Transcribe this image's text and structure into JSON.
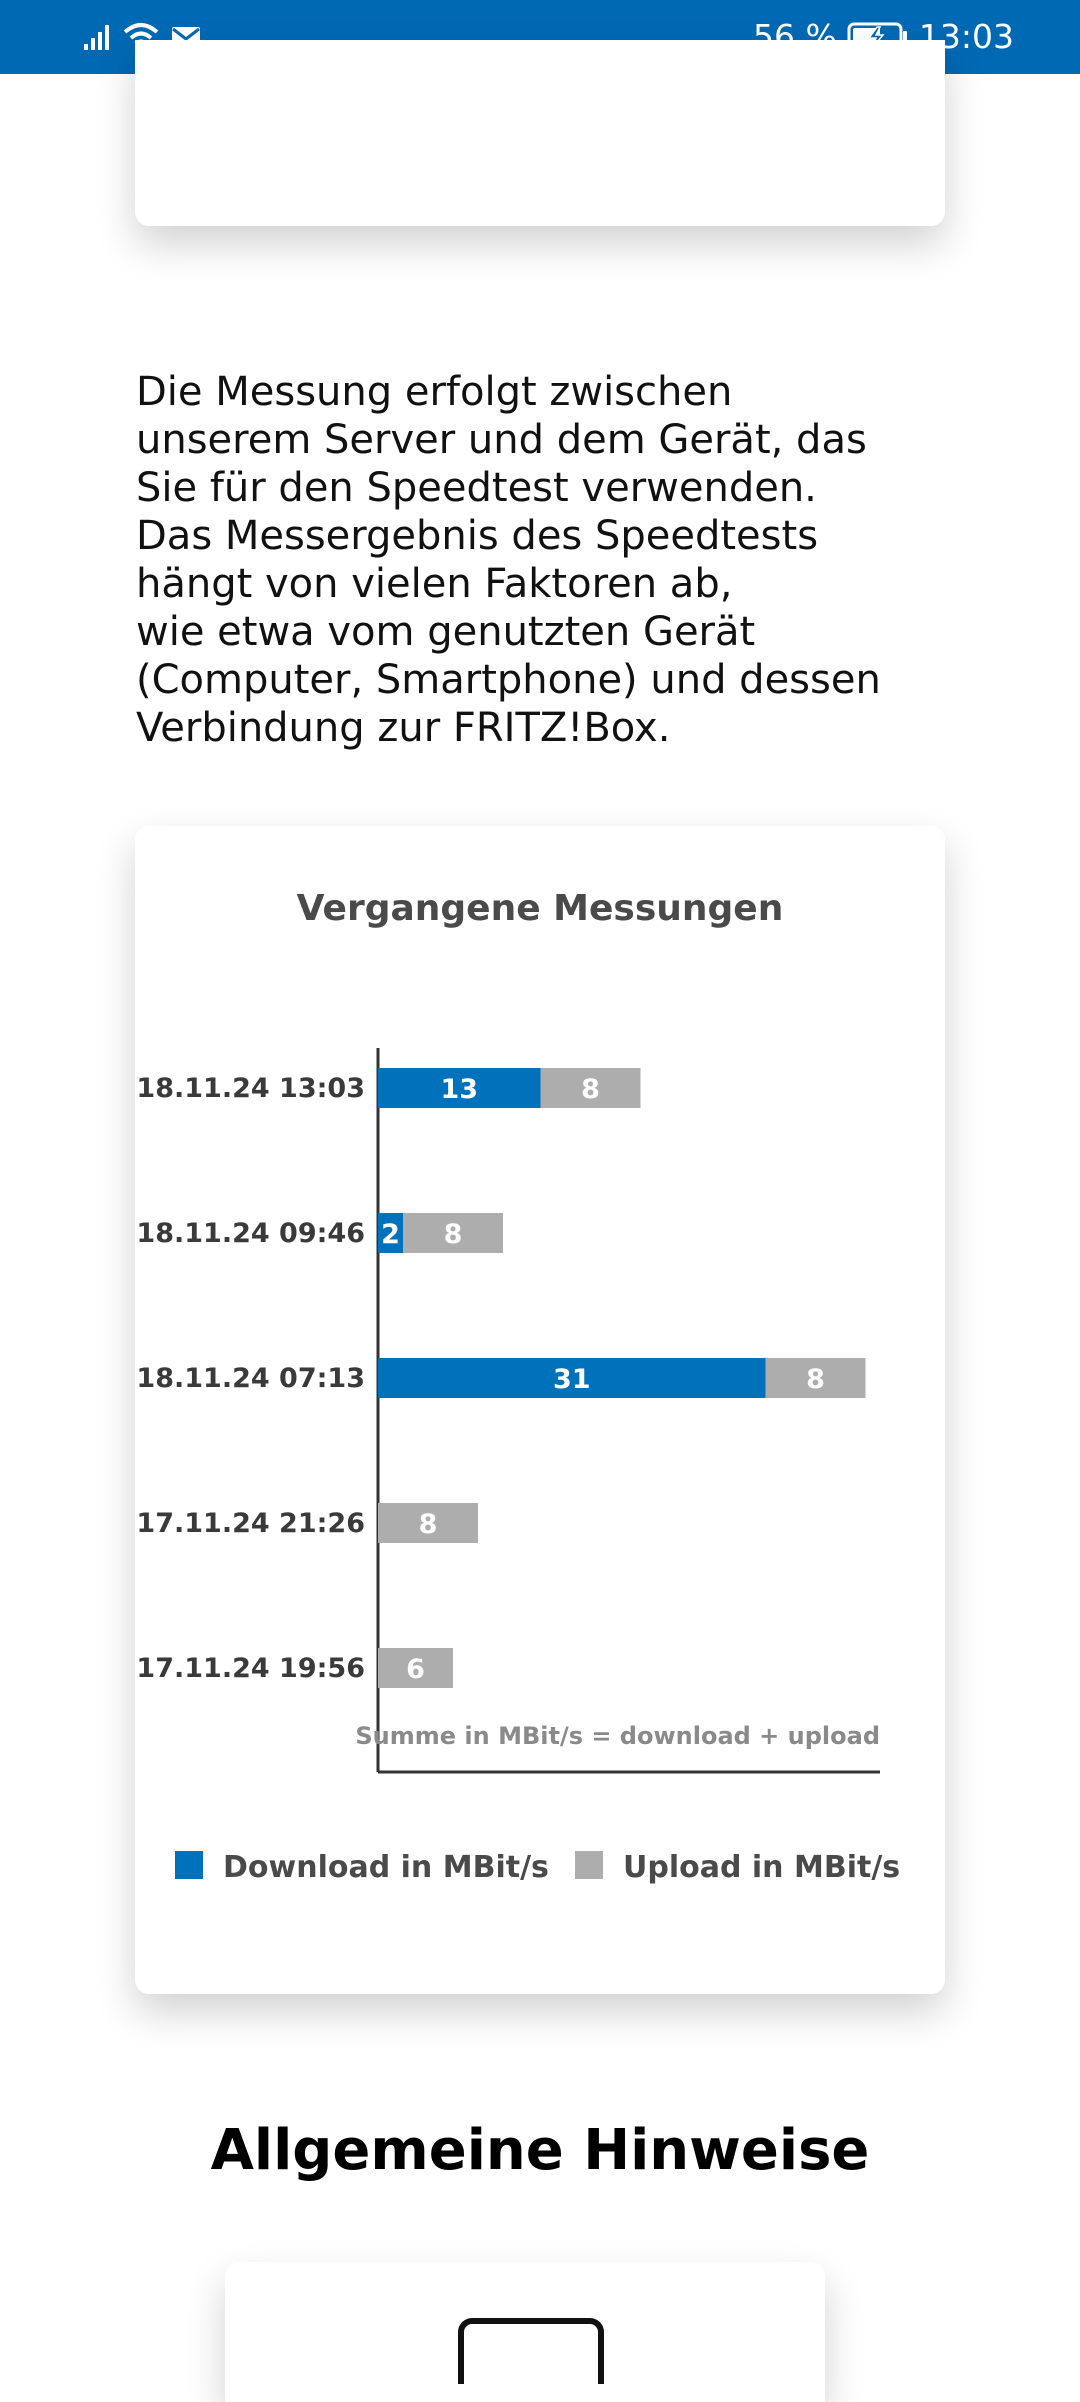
{
  "status_bar": {
    "battery": "56 %",
    "time": "13:03",
    "icons": [
      "signal-icon",
      "wifi-icon",
      "message-icon",
      "battery-charging-icon"
    ],
    "background": "#0069b4"
  },
  "intro_text": "Die Messung erfolgt zwischen\nunserem Server und dem Gerät, das\nSie für den Speedtest verwenden.\nDas Messergebnis des Speedtests\nhängt von vielen Faktoren ab,\nwie etwa vom genutzten Gerät\n(Computer, Smartphone) und dessen\nVerbindung zur FRITZ!Box.",
  "chart_data": {
    "type": "bar",
    "orientation": "horizontal",
    "stacked": true,
    "title": "Vergangene Messungen",
    "categories": [
      "18.11.24 13:03",
      "18.11.24 09:46",
      "18.11.24 07:13",
      "17.11.24 21:26",
      "17.11.24 19:56"
    ],
    "series": [
      {
        "name": "Download in MBit/s",
        "color": "#0072bc",
        "values": [
          13,
          2,
          31,
          0,
          0
        ]
      },
      {
        "name": "Upload in MBit/s",
        "color": "#adadad",
        "values": [
          8,
          8,
          8,
          8,
          6
        ]
      }
    ],
    "annotation": "Summe in MBit/s  = download + upload",
    "xlim": [
      0,
      40
    ],
    "legend_position": "bottom",
    "grid": false
  },
  "section_title": "Allgemeine Hinweise"
}
